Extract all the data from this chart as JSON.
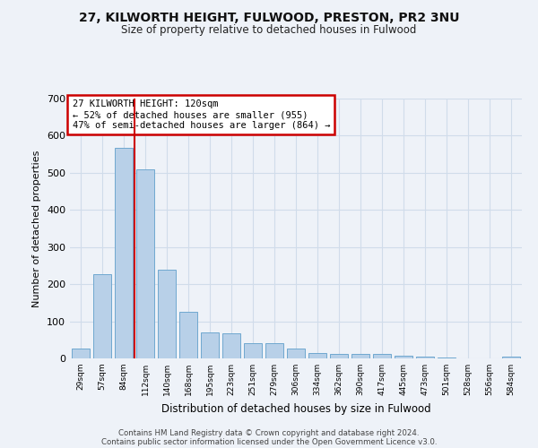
{
  "title1": "27, KILWORTH HEIGHT, FULWOOD, PRESTON, PR2 3NU",
  "title2": "Size of property relative to detached houses in Fulwood",
  "xlabel": "Distribution of detached houses by size in Fulwood",
  "ylabel": "Number of detached properties",
  "categories": [
    "29sqm",
    "57sqm",
    "84sqm",
    "112sqm",
    "140sqm",
    "168sqm",
    "195sqm",
    "223sqm",
    "251sqm",
    "279sqm",
    "306sqm",
    "334sqm",
    "362sqm",
    "390sqm",
    "417sqm",
    "445sqm",
    "473sqm",
    "501sqm",
    "528sqm",
    "556sqm",
    "584sqm"
  ],
  "values": [
    27,
    228,
    568,
    510,
    240,
    125,
    70,
    68,
    42,
    42,
    27,
    15,
    12,
    12,
    11,
    7,
    5,
    2,
    0,
    0,
    5
  ],
  "bar_color": "#b8d0e8",
  "bar_edge_color": "#6fa8d0",
  "grid_color": "#d0dcea",
  "vline_x_index": 3,
  "vline_color": "#cc0000",
  "annotation_text": "27 KILWORTH HEIGHT: 120sqm\n← 52% of detached houses are smaller (955)\n47% of semi-detached houses are larger (864) →",
  "annotation_box_color": "#ffffff",
  "annotation_box_edge": "#cc0000",
  "footer1": "Contains HM Land Registry data © Crown copyright and database right 2024.",
  "footer2": "Contains public sector information licensed under the Open Government Licence v3.0.",
  "ylim": [
    0,
    700
  ],
  "yticks": [
    0,
    100,
    200,
    300,
    400,
    500,
    600,
    700
  ],
  "bg_color": "#eef2f8"
}
